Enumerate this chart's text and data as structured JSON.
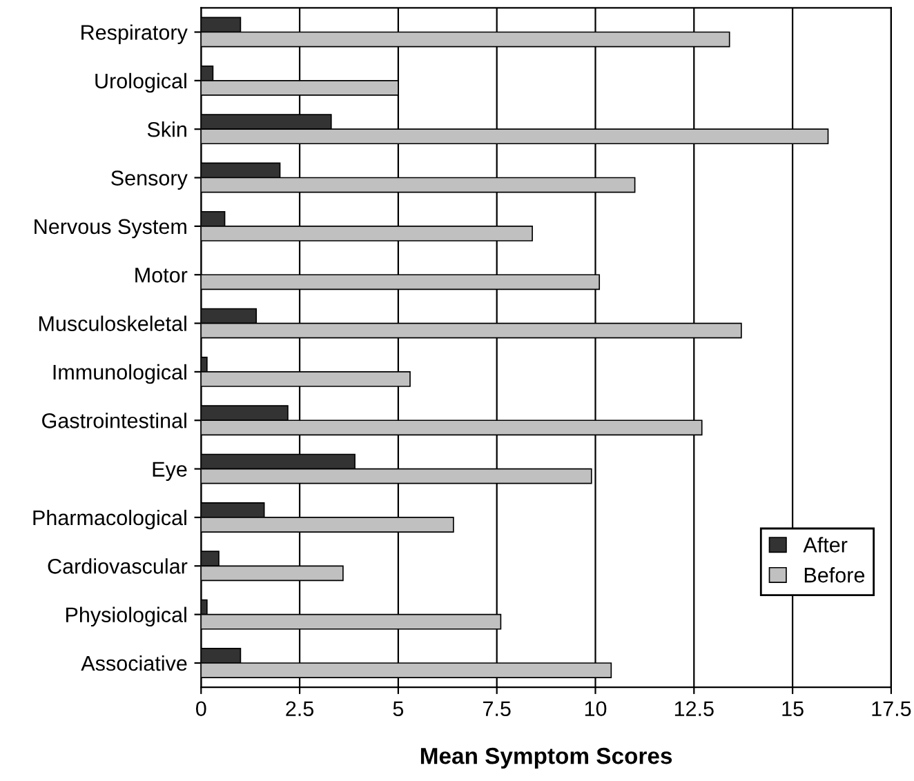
{
  "chart_data": {
    "type": "bar",
    "orientation": "horizontal",
    "xlabel": "Mean Symptom Scores",
    "categories": [
      "Respiratory",
      "Urological",
      "Skin",
      "Sensory",
      "Nervous System",
      "Motor",
      "Musculoskeletal",
      "Immunological",
      "Gastrointestinal",
      "Eye",
      "Pharmacological",
      "Cardiovascular",
      "Physiological",
      "Associative"
    ],
    "series": [
      {
        "name": "After",
        "color": "#333333",
        "values": [
          1.0,
          0.3,
          3.3,
          2.0,
          0.6,
          null,
          1.4,
          0.15,
          2.2,
          3.9,
          1.6,
          0.45,
          0.15,
          1.0
        ]
      },
      {
        "name": "Before",
        "color": "#c0c0c0",
        "values": [
          13.4,
          5.0,
          15.9,
          11.0,
          8.4,
          10.1,
          13.7,
          5.3,
          12.7,
          9.9,
          6.4,
          3.6,
          7.6,
          10.4
        ]
      }
    ],
    "xlim": [
      0,
      17.5
    ],
    "xticks": [
      0,
      2.5,
      5,
      7.5,
      10,
      12.5,
      15,
      17.5
    ],
    "grid": "x",
    "legend": "bottom right"
  }
}
